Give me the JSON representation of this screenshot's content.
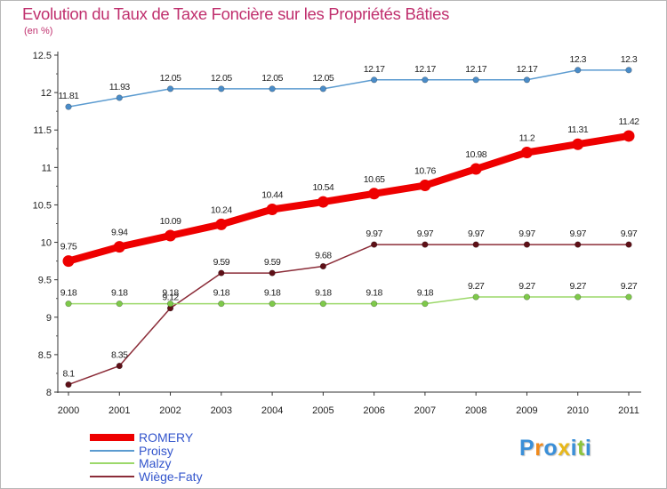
{
  "title": "Evolution du Taux de Taxe Foncière sur les Propriétés Bâties",
  "subtitle": "(en %)",
  "chart_data": {
    "type": "line",
    "title": "Evolution du Taux de Taxe Foncière sur les Propriétés Bâties",
    "ylabel": "(en %)",
    "xlabel": "",
    "x": [
      "2000",
      "2001",
      "2002",
      "2003",
      "2004",
      "2005",
      "2006",
      "2007",
      "2008",
      "2009",
      "2010",
      "2011"
    ],
    "ylim": [
      8,
      12.5
    ],
    "yticks": [
      8,
      8.5,
      9,
      9.5,
      10,
      10.5,
      11,
      11.5,
      12,
      12.5
    ],
    "ytick_labels": [
      "8",
      "8.5",
      "9",
      "9.5",
      "10",
      "10.5",
      "11",
      "11.5",
      "12",
      "12.5"
    ],
    "grid": false,
    "legend_position": "bottom-left",
    "series": [
      {
        "name": "Proisy",
        "color": "#5b9bd0",
        "marker_color": "#4a8cc8",
        "values": [
          11.81,
          11.93,
          12.05,
          12.05,
          12.05,
          12.05,
          12.17,
          12.17,
          12.17,
          12.17,
          12.3,
          12.3
        ],
        "labels": [
          "11.81",
          "11.93",
          "12.05",
          "12.05",
          "12.05",
          "12.05",
          "12.17",
          "12.17",
          "12.17",
          "12.17",
          "12.3",
          "12.3"
        ],
        "label_position": "above"
      },
      {
        "name": "ROMERY",
        "color": "#ee0000",
        "marker_color": "#ee0000",
        "values": [
          9.75,
          9.94,
          10.09,
          10.24,
          10.44,
          10.54,
          10.65,
          10.76,
          10.98,
          11.2,
          11.31,
          11.42
        ],
        "labels": [
          "9.75",
          "9.94",
          "10.09",
          "10.24",
          "10.44",
          "10.54",
          "10.65",
          "10.76",
          "10.98",
          "11.2",
          "11.31",
          "11.42"
        ],
        "label_position": "above"
      },
      {
        "name": "Wiège-Faty",
        "color": "#8b2c38",
        "marker_color": "#5e1017",
        "values": [
          8.1,
          8.35,
          9.12,
          9.59,
          9.59,
          9.68,
          9.97,
          9.97,
          9.97,
          9.97,
          9.97,
          9.97
        ],
        "labels": [
          "8.1",
          "8.35",
          "9.12",
          "9.59",
          "9.59",
          "9.68",
          "9.97",
          "9.97",
          "9.97",
          "9.97",
          "9.97",
          "9.97"
        ],
        "label_position": "above"
      },
      {
        "name": "Malzy",
        "color": "#9cd86a",
        "marker_color": "#7ec94a",
        "values": [
          9.18,
          9.18,
          9.18,
          9.18,
          9.18,
          9.18,
          9.18,
          9.18,
          9.27,
          9.27,
          9.27,
          9.27
        ],
        "labels": [
          "9.18",
          "9.18",
          "9.18",
          "9.18",
          "9.18",
          "9.18",
          "9.18",
          "9.18",
          "9.27",
          "9.27",
          "9.27",
          "9.27"
        ],
        "label_position": "above"
      }
    ]
  },
  "legend": [
    {
      "label": "ROMERY",
      "color": "#ee0000",
      "text_color": "#3355cc"
    },
    {
      "label": "Proisy",
      "color": "#5b9bd0",
      "text_color": "#3355cc"
    },
    {
      "label": "Malzy",
      "color": "#9cd86a",
      "text_color": "#3355cc"
    },
    {
      "label": "Wiège-Faty",
      "color": "#8b2c38",
      "text_color": "#3355cc"
    }
  ],
  "logo": {
    "letters": [
      "P",
      "r",
      "o",
      "x",
      "i",
      "t",
      "i"
    ],
    "colors": [
      "#3a8fd8",
      "#f08a1c",
      "#3a8fd8",
      "#e8b81a",
      "#3a8fd8",
      "#8cc43c",
      "#3a8fd8"
    ]
  }
}
